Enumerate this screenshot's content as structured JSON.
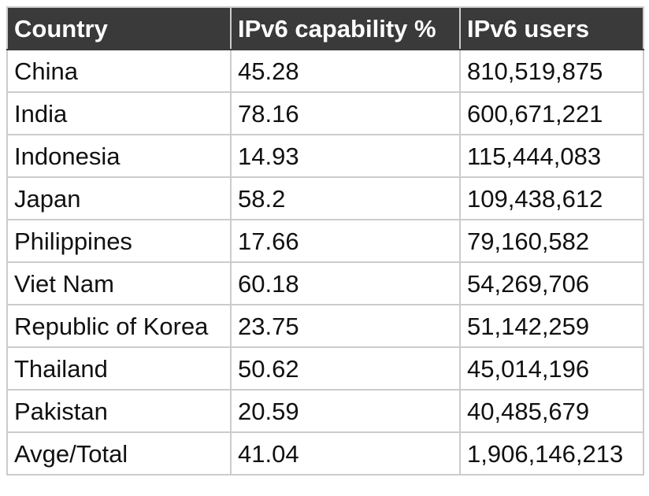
{
  "table": {
    "headers": [
      "Country",
      "IPv6 capability %",
      "IPv6 users"
    ],
    "rows": [
      [
        "China",
        "45.28",
        "810,519,875"
      ],
      [
        "India",
        "78.16",
        "600,671,221"
      ],
      [
        "Indonesia",
        "14.93",
        "115,444,083"
      ],
      [
        "Japan",
        "58.2",
        "109,438,612"
      ],
      [
        "Philippines",
        "17.66",
        "79,160,582"
      ],
      [
        "Viet Nam",
        "60.18",
        "54,269,706"
      ],
      [
        "Republic of Korea",
        "23.75",
        "51,142,259"
      ],
      [
        "Thailand",
        "50.62",
        "45,014,196"
      ],
      [
        "Pakistan",
        "20.59",
        "40,485,679"
      ],
      [
        "Avge/Total",
        "41.04",
        "1,906,146,213"
      ]
    ]
  },
  "colors": {
    "header_background": "#3a3a3a",
    "header_text": "#ffffff",
    "border": "#cccccc"
  }
}
